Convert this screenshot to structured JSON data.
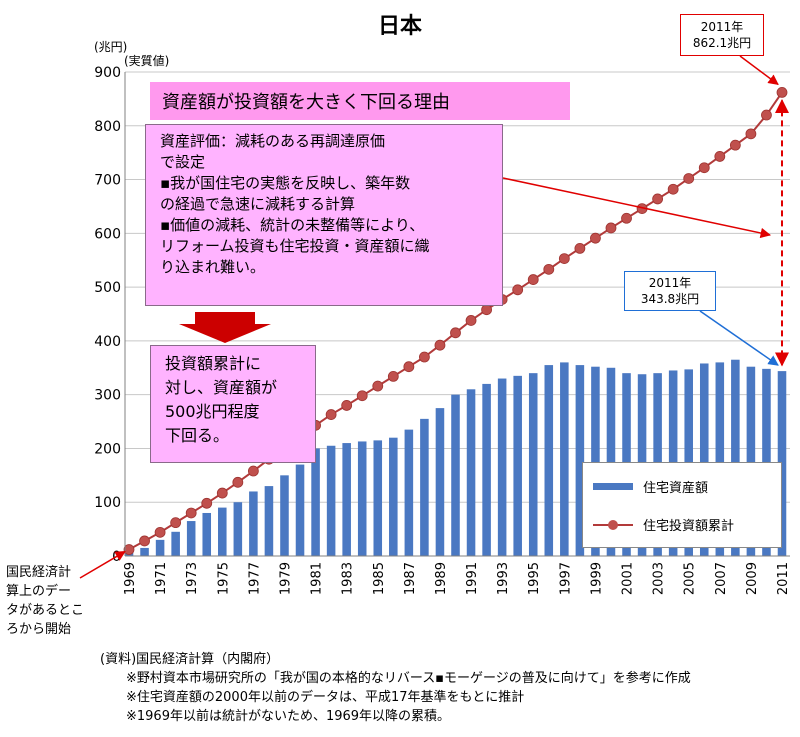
{
  "title": "日本",
  "y_unit": "(兆円)",
  "value_basis": "(実質値)",
  "headline": "資産額が投資額を大きく下回る理由",
  "explanation_lines": [
    "資産評価：減耗のある再調達原価",
    "で設定",
    "▪我が国住宅の実態を反映し、築年数",
    "の経過で急速に減耗する計算",
    "▪価値の減耗、統計の未整備等により、",
    "リフォーム投資も住宅投資・資産額に織",
    "り込まれ難い。"
  ],
  "result_lines": [
    "投資額累計に",
    "対し、資産額が",
    "500兆円程度",
    "下回る。"
  ],
  "callout_cumulative": {
    "year": "2011年",
    "value": "862.1兆円"
  },
  "callout_asset": {
    "year": "2011年",
    "value": "343.8兆円"
  },
  "origin_note_lines": [
    "国民経済計",
    "算上のデー",
    "タがあるとこ",
    "ろから開始"
  ],
  "notes": [
    "(資料)国民経済計算（内閣府）",
    "※野村資本市場研究所の「我が国の本格的なリバース▪モーゲージの普及に向けて」を参考に作成",
    "※住宅資産額の2000年以前のデータは、平成17年基準をもとに推計",
    "※1969年以前は統計がないため、1969年以降の累積。"
  ],
  "colors": {
    "bar": "#4a78c2",
    "line": "#b23a3a",
    "marker": "#c0504d",
    "arrow_red": "#e00000",
    "arrow_blue": "#1f6fd6",
    "down_arrow": "#cc0000"
  },
  "chart_data": {
    "type": "bar",
    "title": "日本",
    "ylabel": "(兆円)",
    "ylim": [
      0,
      900
    ],
    "yticks": [
      0,
      100,
      200,
      300,
      400,
      500,
      600,
      700,
      800,
      900
    ],
    "xtick_labels": [
      "1969",
      "1971",
      "1973",
      "1975",
      "1977",
      "1979",
      "1981",
      "1983",
      "1985",
      "1987",
      "1989",
      "1991",
      "1993",
      "1995",
      "1997",
      "1999",
      "2001",
      "2003",
      "2005",
      "2007",
      "2009",
      "2011"
    ],
    "legend_position": "bottom-right",
    "years": [
      1969,
      1970,
      1971,
      1972,
      1973,
      1974,
      1975,
      1976,
      1977,
      1978,
      1979,
      1980,
      1981,
      1982,
      1983,
      1984,
      1985,
      1986,
      1987,
      1988,
      1989,
      1990,
      1991,
      1992,
      1993,
      1994,
      1995,
      1996,
      1997,
      1998,
      1999,
      2000,
      2001,
      2002,
      2003,
      2004,
      2005,
      2006,
      2007,
      2008,
      2009,
      2010,
      2011
    ],
    "series": [
      {
        "name": "住宅資産額",
        "type": "bar",
        "values": [
          8,
          15,
          30,
          45,
          65,
          80,
          90,
          100,
          120,
          130,
          150,
          170,
          200,
          205,
          210,
          213,
          215,
          220,
          235,
          255,
          275,
          300,
          310,
          320,
          330,
          335,
          340,
          355,
          360,
          355,
          352,
          350,
          340,
          338,
          340,
          345,
          347,
          358,
          360,
          365,
          352,
          348,
          343.8
        ]
      },
      {
        "name": "住宅投資額累計",
        "type": "line",
        "values": [
          12,
          28,
          44,
          62,
          80,
          98,
          117,
          137,
          158,
          180,
          202,
          224,
          243,
          263,
          280,
          298,
          316,
          334,
          352,
          370,
          392,
          415,
          438,
          458,
          477,
          495,
          514,
          533,
          553,
          572,
          591,
          610,
          628,
          646,
          664,
          682,
          702,
          722,
          743,
          764,
          785,
          820,
          862.1
        ]
      }
    ]
  }
}
